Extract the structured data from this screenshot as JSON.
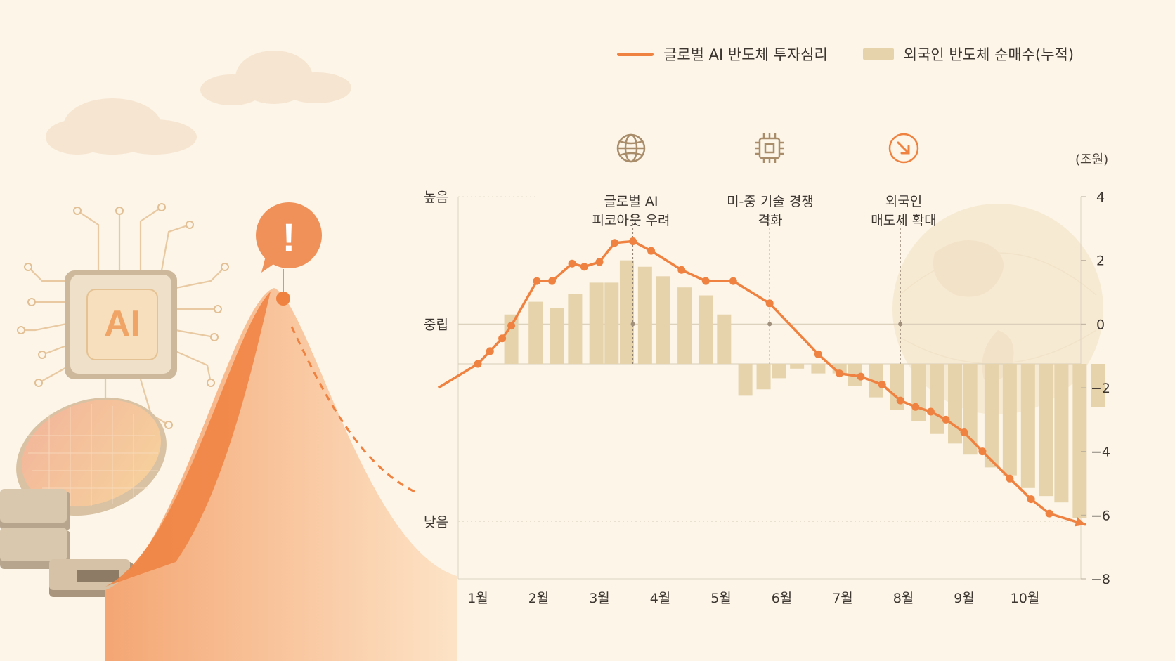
{
  "legend": {
    "line_label": "글로벌 AI 반도체 투자심리",
    "bar_label": "외국인 반도체 순매수(누적)"
  },
  "colors": {
    "line": "#ef8240",
    "bar": "#e6d3ab",
    "background": "#fcf5e8",
    "accent_bubble": "#f0915a"
  },
  "illustration": {
    "chip_text": "AI",
    "alert_symbol": "!"
  },
  "events": [
    {
      "line1": "글로벌 AI",
      "line2": "피코아웃 우려",
      "icon": "globe-icon"
    },
    {
      "line1": "미-중 기술 경쟁",
      "line2": "격화",
      "icon": "chip-icon"
    },
    {
      "line1": "외국인",
      "line2": "매도세 확대",
      "icon": "arrow-down-right-icon"
    }
  ],
  "chart_data": {
    "type": "bar+line",
    "categories": [
      "1월",
      "2월",
      "3월",
      "4월",
      "5월",
      "6월",
      "7월",
      "8월",
      "9월",
      "10월"
    ],
    "left_axis": {
      "ticks": [
        "높음",
        "중립",
        "낮음"
      ]
    },
    "right_axis": {
      "unit": "(조원)",
      "ticks": [
        4,
        2,
        0,
        -2,
        -4,
        -6,
        -8
      ],
      "ylim": [
        -8,
        4
      ]
    },
    "bars": {
      "name": "외국인 반도체 순매수(누적)",
      "x": [
        1.55,
        1.95,
        2.3,
        2.6,
        2.95,
        3.2,
        3.45,
        3.75,
        4.05,
        4.4,
        4.75,
        5.05,
        5.4,
        5.7,
        5.95,
        6.25,
        6.6,
        6.95,
        7.2,
        7.55,
        7.9,
        8.25,
        8.55,
        8.85,
        9.1,
        9.45,
        9.75,
        10.05,
        10.35,
        10.6,
        10.9,
        11.2
      ],
      "values": [
        0.3,
        0.7,
        0.5,
        0.95,
        1.3,
        1.3,
        2.0,
        1.8,
        1.5,
        1.15,
        0.9,
        0.3,
        -0.25,
        -0.45,
        -0.8,
        -1.1,
        -1.55,
        -1.55,
        -1.95,
        -2.3,
        -2.7,
        -3.05,
        -3.45,
        -3.75,
        -4.1,
        -4.5,
        -4.75,
        -5.15,
        -5.4,
        -5.6,
        -6.1,
        -2.6
      ]
    },
    "line": {
      "name": "글로벌 AI 반도체 투자심리",
      "x": [
        0.35,
        1.0,
        1.2,
        1.4,
        1.55,
        1.97,
        2.22,
        2.55,
        2.75,
        3.0,
        3.25,
        3.55,
        3.85,
        4.35,
        4.75,
        5.2,
        5.8,
        6.6,
        6.95,
        7.3,
        7.65,
        7.95,
        8.2,
        8.45,
        8.7,
        9.0,
        9.3,
        9.75,
        10.1,
        10.4,
        11.0
      ],
      "values": [
        -2.0,
        -1.25,
        -0.85,
        -0.45,
        -0.05,
        1.35,
        1.35,
        1.9,
        1.8,
        1.95,
        2.55,
        2.6,
        2.3,
        1.7,
        1.35,
        1.35,
        0.65,
        -0.95,
        -1.55,
        -1.65,
        -1.9,
        -2.4,
        -2.6,
        -2.75,
        -3.0,
        -3.4,
        -4.0,
        -4.85,
        -5.5,
        -5.95,
        -6.3
      ]
    },
    "event_x": [
      3.55,
      5.8,
      7.95
    ]
  }
}
